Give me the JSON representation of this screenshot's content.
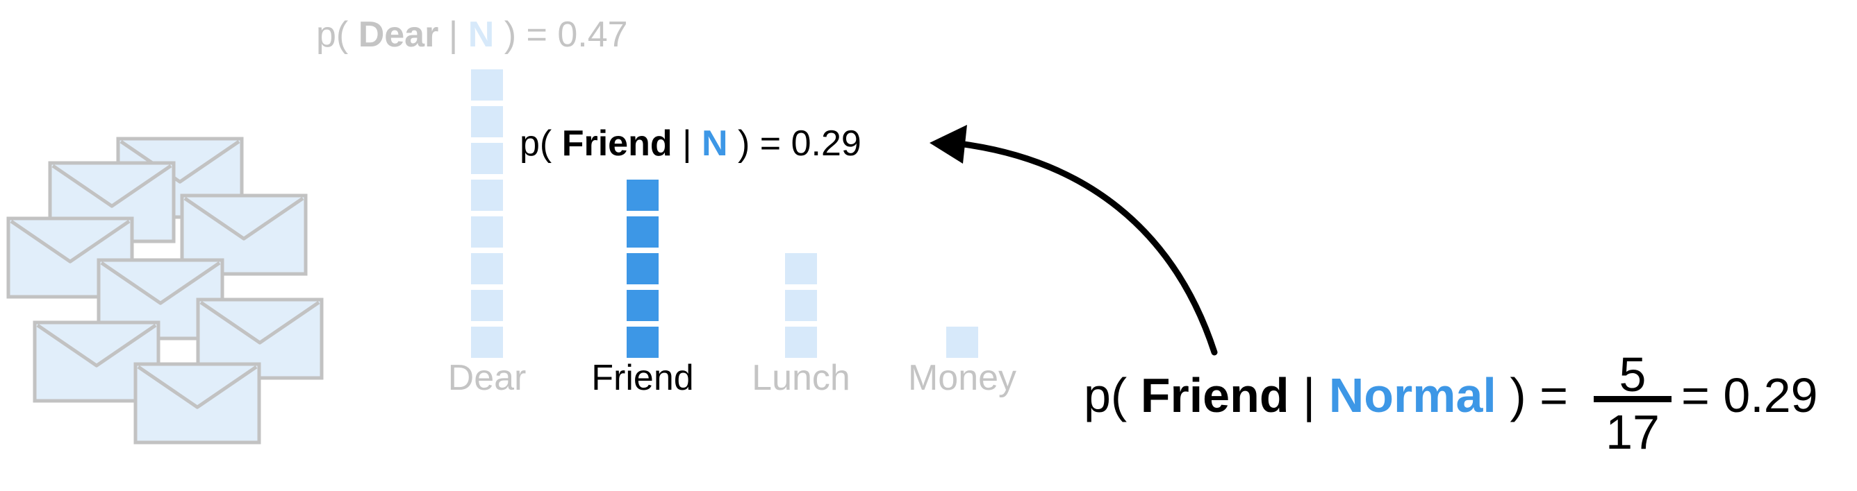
{
  "colors": {
    "blue": "#3d97e6",
    "pale_blue": "#d7e9fa",
    "faded_text": "#c4c4c4",
    "envelope_fill": "#e1eefa",
    "envelope_stroke": "#c2c2c2"
  },
  "envelopes": {
    "icon": "envelope-icon",
    "count": 8
  },
  "histogram": {
    "words": [
      {
        "label": "Dear",
        "count": 8,
        "highlighted": false
      },
      {
        "label": "Friend",
        "count": 5,
        "highlighted": true
      },
      {
        "label": "Lunch",
        "count": 3,
        "highlighted": false
      },
      {
        "label": "Money",
        "count": 1,
        "highlighted": false
      }
    ]
  },
  "faded_equation": {
    "open": "p(",
    "word": "Dear",
    "bar": "|",
    "cls": "N",
    "close": ") = 0.47"
  },
  "friend_equation": {
    "open": "p(",
    "word": "Friend",
    "bar": "|",
    "cls": "N",
    "close": ") = 0.29"
  },
  "main_equation": {
    "open": "p(",
    "word": "Friend",
    "bar": "|",
    "cls": "Normal",
    "close": ") =",
    "numerator": "5",
    "denominator": "17",
    "result": "= 0.29"
  },
  "arrow": {
    "icon": "curved-arrow-icon"
  }
}
